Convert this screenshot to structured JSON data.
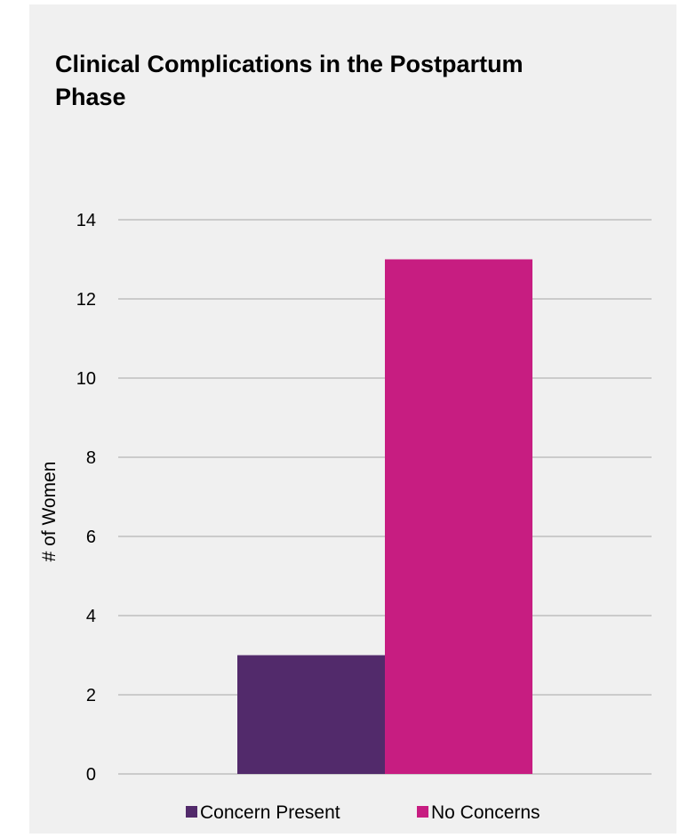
{
  "chart_data": {
    "type": "bar",
    "title": "Clinical Complications in the Postpartum Phase",
    "ylabel": "# of Women",
    "xlabel": "",
    "ylim": [
      0,
      14
    ],
    "yticks": [
      0,
      2,
      4,
      6,
      8,
      10,
      12,
      14
    ],
    "grid": true,
    "legend_position": "bottom",
    "series": [
      {
        "name": "Concern Present",
        "values": [
          3
        ],
        "color": "#522a6b"
      },
      {
        "name": "No Concerns",
        "values": [
          13
        ],
        "color": "#c71d81"
      }
    ]
  }
}
